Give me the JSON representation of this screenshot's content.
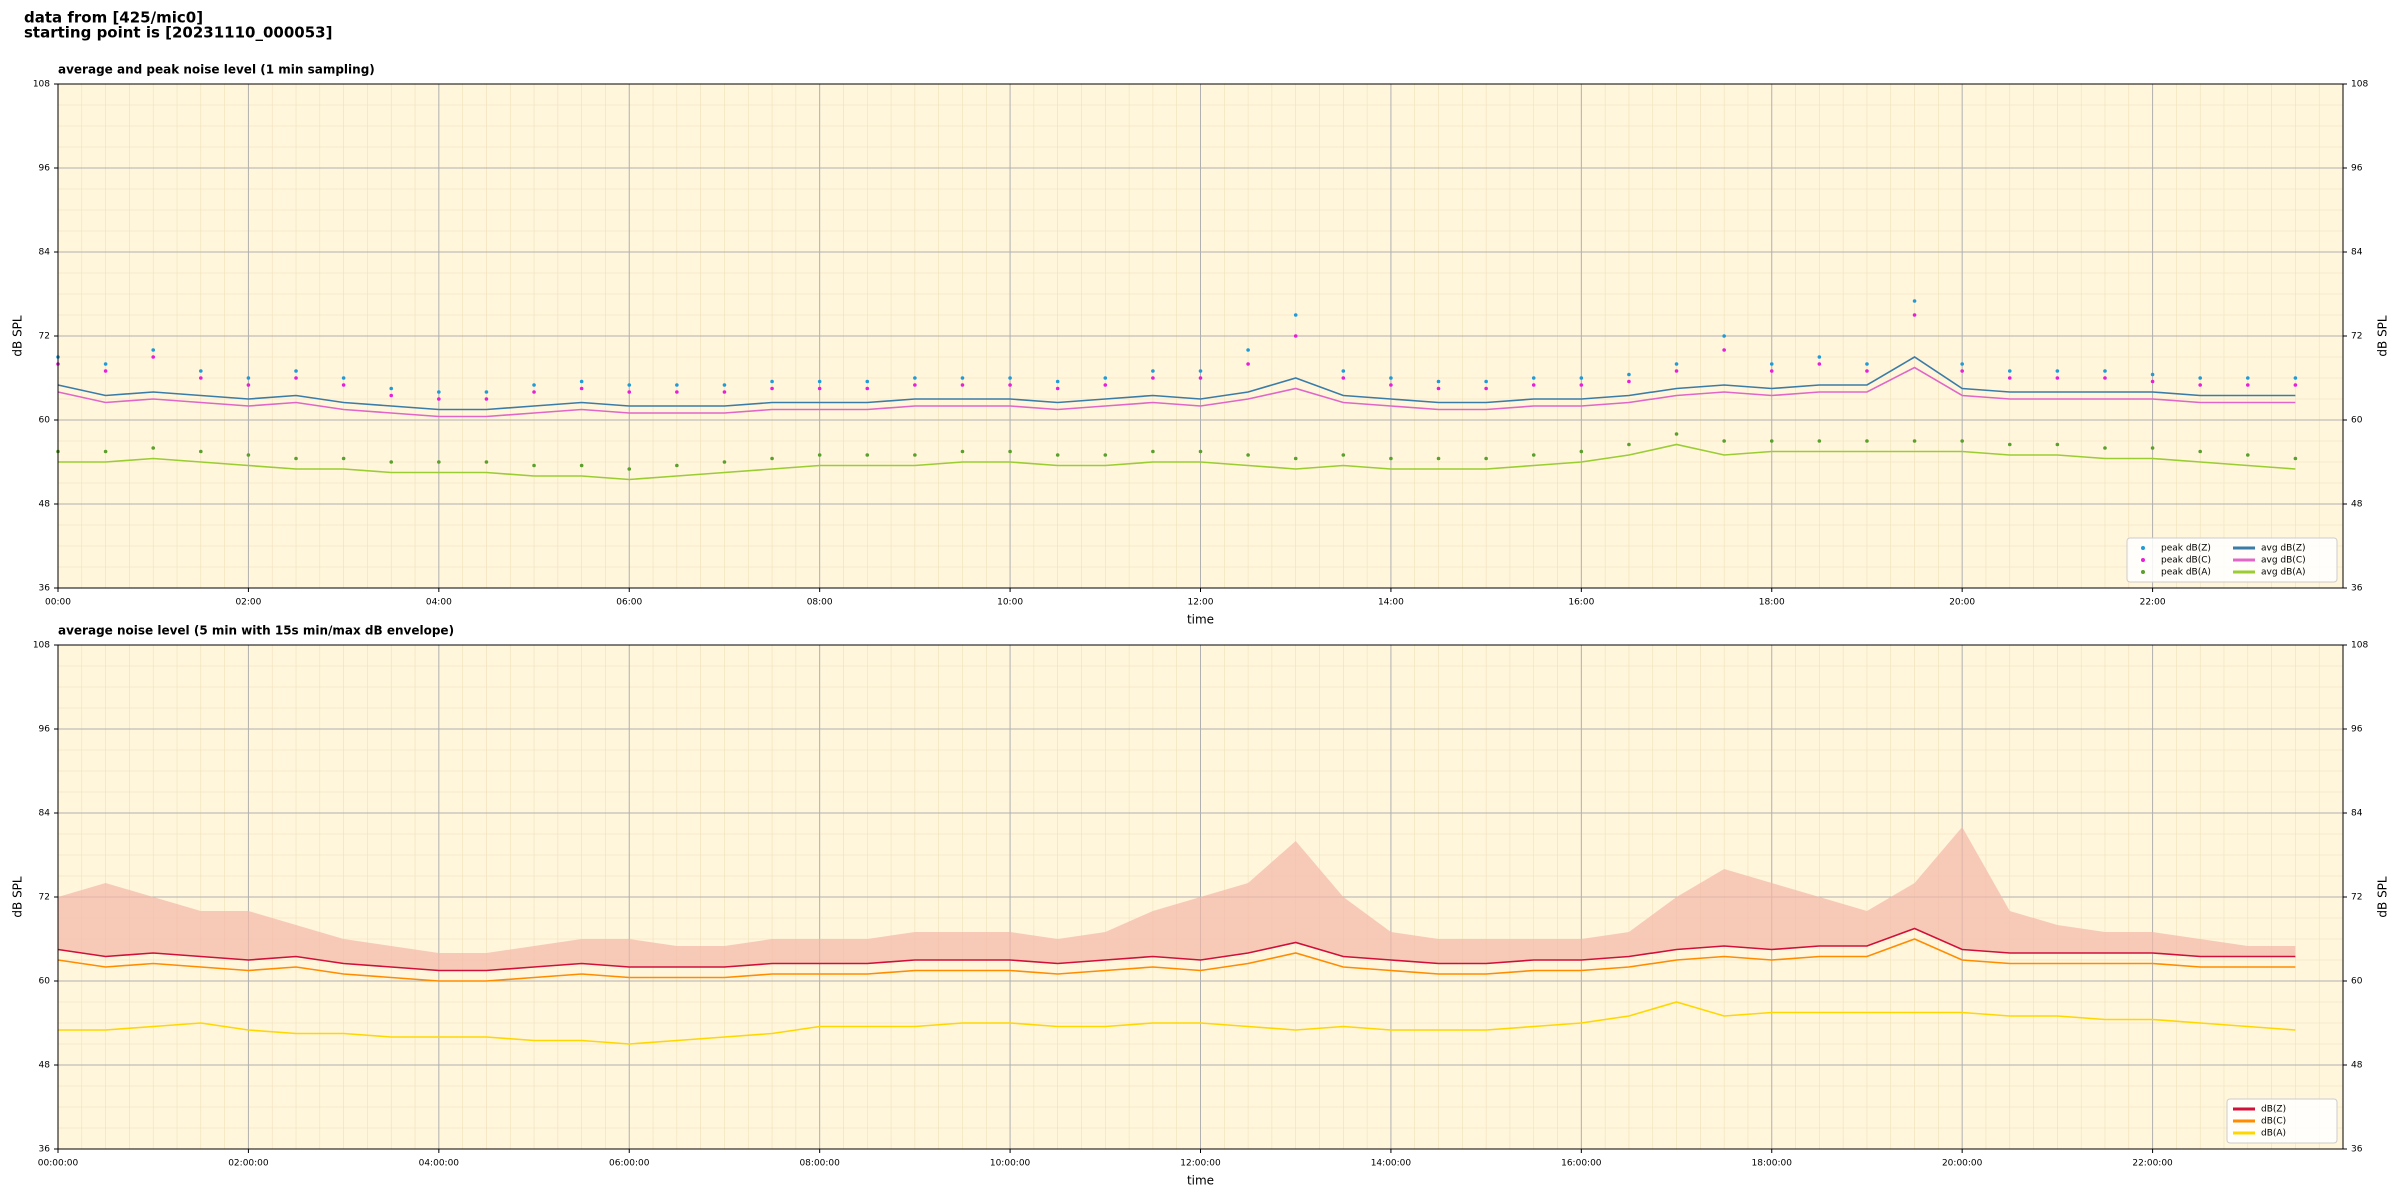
{
  "header": {
    "line1": "data from [425/mic0]",
    "line2": "starting point is [20231110_000053]"
  },
  "chart_data": [
    {
      "type": "combo",
      "title": "average and peak noise level (1 min sampling)",
      "x_label": "time",
      "y_label": "dB SPL",
      "xlim": [
        0,
        24
      ],
      "ylim": [
        36,
        108
      ],
      "yticks": [
        36,
        48,
        60,
        72,
        84,
        96,
        108
      ],
      "grid": true,
      "legend": "lower right",
      "xticks": [
        {
          "value": 0,
          "label": "00:00"
        },
        {
          "value": 2,
          "label": "02:00"
        },
        {
          "value": 4,
          "label": "04:00"
        },
        {
          "value": 6,
          "label": "06:00"
        },
        {
          "value": 8,
          "label": "08:00"
        },
        {
          "value": 10,
          "label": "10:00"
        },
        {
          "value": 12,
          "label": "12:00"
        },
        {
          "value": 14,
          "label": "14:00"
        },
        {
          "value": 16,
          "label": "16:00"
        },
        {
          "value": 18,
          "label": "18:00"
        },
        {
          "value": 20,
          "label": "20:00"
        },
        {
          "value": 22,
          "label": "22:00"
        }
      ],
      "x": [
        0,
        0.5,
        1,
        1.5,
        2,
        2.5,
        3,
        3.5,
        4,
        4.5,
        5,
        5.5,
        6,
        6.5,
        7,
        7.5,
        8,
        8.5,
        9,
        9.5,
        10,
        10.5,
        11,
        11.5,
        12,
        12.5,
        13,
        13.5,
        14,
        14.5,
        15,
        15.5,
        16,
        16.5,
        17,
        17.5,
        18,
        18.5,
        19,
        19.5,
        20,
        20.5,
        21,
        21.5,
        22,
        22.5,
        23,
        23.5
      ],
      "series": [
        {
          "name": "peak dB(Z)",
          "type": "scatter",
          "color": "#1f9bd8",
          "values": [
            69,
            68,
            70,
            67,
            66,
            67,
            66,
            64.5,
            64,
            64,
            65,
            65.5,
            65,
            65,
            65,
            65.5,
            65.5,
            65.5,
            66,
            66,
            66,
            65.5,
            66,
            67,
            67,
            70,
            75,
            67,
            66,
            65.5,
            65.5,
            66,
            66,
            66.5,
            68,
            72,
            68,
            69,
            68,
            77,
            68,
            67,
            67,
            67,
            66.5,
            66,
            66,
            66
          ]
        },
        {
          "name": "peak dB(C)",
          "type": "scatter",
          "color": "#e81ed8",
          "values": [
            68,
            67,
            69,
            66,
            65,
            66,
            65,
            63.5,
            63,
            63,
            64,
            64.5,
            64,
            64,
            64,
            64.5,
            64.5,
            64.5,
            65,
            65,
            65,
            64.5,
            65,
            66,
            66,
            68,
            72,
            66,
            65,
            64.5,
            64.5,
            65,
            65,
            65.5,
            67,
            70,
            67,
            68,
            67,
            75,
            67,
            66,
            66,
            66,
            65.5,
            65,
            65,
            65
          ]
        },
        {
          "name": "peak dB(A)",
          "type": "scatter",
          "color": "#5aa02c",
          "values": [
            55.5,
            55.5,
            56,
            55.5,
            55,
            54.5,
            54.5,
            54,
            54,
            54,
            53.5,
            53.5,
            53,
            53.5,
            54,
            54.5,
            55,
            55,
            55,
            55.5,
            55.5,
            55,
            55,
            55.5,
            55.5,
            55,
            54.5,
            55,
            54.5,
            54.5,
            54.5,
            55,
            55.5,
            56.5,
            58,
            57,
            57,
            57,
            57,
            57,
            57,
            56.5,
            56.5,
            56,
            56,
            55.5,
            55,
            54.5
          ]
        },
        {
          "name": "avg dB(Z)",
          "type": "line",
          "color": "#3a7ca8",
          "values": [
            65,
            63.5,
            64,
            63.5,
            63,
            63.5,
            62.5,
            62,
            61.5,
            61.5,
            62,
            62.5,
            62,
            62,
            62,
            62.5,
            62.5,
            62.5,
            63,
            63,
            63,
            62.5,
            63,
            63.5,
            63,
            64,
            66,
            63.5,
            63,
            62.5,
            62.5,
            63,
            63,
            63.5,
            64.5,
            65,
            64.5,
            65,
            65,
            69,
            64.5,
            64,
            64,
            64,
            64,
            63.5,
            63.5,
            63.5
          ]
        },
        {
          "name": "avg dB(C)",
          "type": "line",
          "color": "#e066c8",
          "values": [
            64,
            62.5,
            63,
            62.5,
            62,
            62.5,
            61.5,
            61,
            60.5,
            60.5,
            61,
            61.5,
            61,
            61,
            61,
            61.5,
            61.5,
            61.5,
            62,
            62,
            62,
            61.5,
            62,
            62.5,
            62,
            63,
            64.5,
            62.5,
            62,
            61.5,
            61.5,
            62,
            62,
            62.5,
            63.5,
            64,
            63.5,
            64,
            64,
            67.5,
            63.5,
            63,
            63,
            63,
            63,
            62.5,
            62.5,
            62.5
          ]
        },
        {
          "name": "avg dB(A)",
          "type": "line",
          "color": "#9acd32",
          "values": [
            54,
            54,
            54.5,
            54,
            53.5,
            53,
            53,
            52.5,
            52.5,
            52.5,
            52,
            52,
            51.5,
            52,
            52.5,
            53,
            53.5,
            53.5,
            53.5,
            54,
            54,
            53.5,
            53.5,
            54,
            54,
            53.5,
            53,
            53.5,
            53,
            53,
            53,
            53.5,
            54,
            55,
            56.5,
            55,
            55.5,
            55.5,
            55.5,
            55.5,
            55.5,
            55,
            55,
            54.5,
            54.5,
            54,
            53.5,
            53
          ]
        }
      ]
    },
    {
      "type": "line",
      "title": "average noise level (5 min with 15s min/max dB envelope)",
      "x_label": "time",
      "y_label": "dB SPL",
      "xlim": [
        0,
        24
      ],
      "ylim": [
        36,
        108
      ],
      "yticks": [
        36,
        48,
        60,
        72,
        84,
        96,
        108
      ],
      "grid": true,
      "legend": "lower right",
      "xticks": [
        {
          "value": 0,
          "label": "00:00:00"
        },
        {
          "value": 2,
          "label": "02:00:00"
        },
        {
          "value": 4,
          "label": "04:00:00"
        },
        {
          "value": 6,
          "label": "06:00:00"
        },
        {
          "value": 8,
          "label": "08:00:00"
        },
        {
          "value": 10,
          "label": "10:00:00"
        },
        {
          "value": 12,
          "label": "12:00:00"
        },
        {
          "value": 14,
          "label": "14:00:00"
        },
        {
          "value": 16,
          "label": "16:00:00"
        },
        {
          "value": 18,
          "label": "18:00:00"
        },
        {
          "value": 20,
          "label": "20:00:00"
        },
        {
          "value": 22,
          "label": "22:00:00"
        }
      ],
      "x": [
        0,
        0.5,
        1,
        1.5,
        2,
        2.5,
        3,
        3.5,
        4,
        4.5,
        5,
        5.5,
        6,
        6.5,
        7,
        7.5,
        8,
        8.5,
        9,
        9.5,
        10,
        10.5,
        11,
        11.5,
        12,
        12.5,
        13,
        13.5,
        14,
        14.5,
        15,
        15.5,
        16,
        16.5,
        17,
        17.5,
        18,
        18.5,
        19,
        19.5,
        20,
        20.5,
        21,
        21.5,
        22,
        22.5,
        23,
        23.5
      ],
      "series": [
        {
          "name": "dB(Z)",
          "color": "#d0103a",
          "envelope_color": "#f4b8a8",
          "envelope": [
            72,
            74,
            72,
            70,
            70,
            68,
            66,
            65,
            64,
            64,
            65,
            66,
            66,
            65,
            65,
            66,
            66,
            66,
            67,
            67,
            67,
            66,
            67,
            70,
            72,
            74,
            80,
            72,
            67,
            66,
            66,
            66,
            66,
            67,
            72,
            76,
            74,
            72,
            70,
            74,
            82,
            70,
            68,
            67,
            67,
            66,
            65,
            65
          ],
          "values": [
            64.5,
            63.5,
            64,
            63.5,
            63,
            63.5,
            62.5,
            62,
            61.5,
            61.5,
            62,
            62.5,
            62,
            62,
            62,
            62.5,
            62.5,
            62.5,
            63,
            63,
            63,
            62.5,
            63,
            63.5,
            63,
            64,
            65.5,
            63.5,
            63,
            62.5,
            62.5,
            63,
            63,
            63.5,
            64.5,
            65,
            64.5,
            65,
            65,
            67.5,
            64.5,
            64,
            64,
            64,
            64,
            63.5,
            63.5,
            63.5
          ]
        },
        {
          "name": "dB(C)",
          "color": "#ff8c00",
          "values": [
            63,
            62,
            62.5,
            62,
            61.5,
            62,
            61,
            60.5,
            60,
            60,
            60.5,
            61,
            60.5,
            60.5,
            60.5,
            61,
            61,
            61,
            61.5,
            61.5,
            61.5,
            61,
            61.5,
            62,
            61.5,
            62.5,
            64,
            62,
            61.5,
            61,
            61,
            61.5,
            61.5,
            62,
            63,
            63.5,
            63,
            63.5,
            63.5,
            66,
            63,
            62.5,
            62.5,
            62.5,
            62.5,
            62,
            62,
            62
          ]
        },
        {
          "name": "dB(A)",
          "color": "#ffd700",
          "values": [
            53,
            53,
            53.5,
            54,
            53,
            52.5,
            52.5,
            52,
            52,
            52,
            51.5,
            51.5,
            51,
            51.5,
            52,
            52.5,
            53.5,
            53.5,
            53.5,
            54,
            54,
            53.5,
            53.5,
            54,
            54,
            53.5,
            53,
            53.5,
            53,
            53,
            53,
            53.5,
            54,
            55,
            57,
            55,
            55.5,
            55.5,
            55.5,
            55.5,
            55.5,
            55,
            55,
            54.5,
            54.5,
            54,
            53.5,
            53
          ]
        }
      ]
    }
  ]
}
